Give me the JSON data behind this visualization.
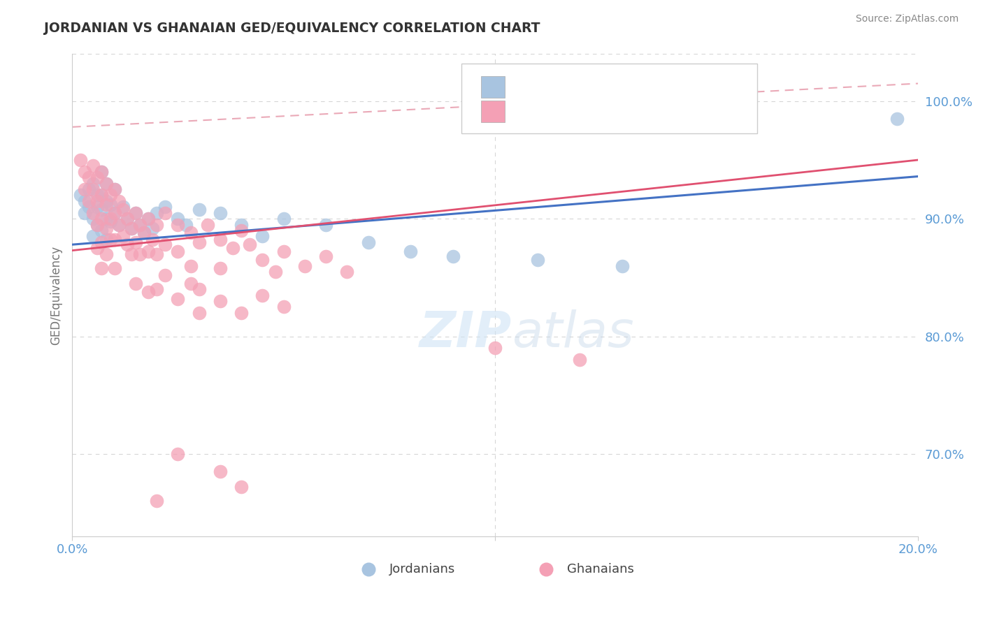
{
  "title": "JORDANIAN VS GHANAIAN GED/EQUIVALENCY CORRELATION CHART",
  "source": "Source: ZipAtlas.com",
  "ylabel": "GED/Equivalency",
  "xlim": [
    0.0,
    0.2
  ],
  "ylim": [
    0.63,
    1.04
  ],
  "yticks": [
    0.7,
    0.8,
    0.9,
    1.0
  ],
  "yticklabels": [
    "70.0%",
    "80.0%",
    "90.0%",
    "100.0%"
  ],
  "color_jordan": "#a8c4e0",
  "color_ghana": "#f4a0b5",
  "line_color_jordan": "#4472c4",
  "line_color_ghana": "#e05070",
  "dashed_line_color": "#e8a0b0",
  "background_color": "#ffffff",
  "grid_color": "#cccccc",
  "tick_color": "#5b9bd5",
  "title_color": "#333333",
  "jordan_trend": [
    0.878,
    0.936
  ],
  "ghana_trend": [
    0.873,
    0.95
  ],
  "dash_trend": [
    0.978,
    1.015
  ],
  "jordan_points": [
    [
      0.002,
      0.92
    ],
    [
      0.003,
      0.915
    ],
    [
      0.003,
      0.905
    ],
    [
      0.004,
      0.925
    ],
    [
      0.004,
      0.91
    ],
    [
      0.005,
      0.93
    ],
    [
      0.005,
      0.9
    ],
    [
      0.005,
      0.885
    ],
    [
      0.006,
      0.92
    ],
    [
      0.006,
      0.91
    ],
    [
      0.006,
      0.895
    ],
    [
      0.007,
      0.94
    ],
    [
      0.007,
      0.92
    ],
    [
      0.007,
      0.908
    ],
    [
      0.007,
      0.89
    ],
    [
      0.008,
      0.93
    ],
    [
      0.008,
      0.915
    ],
    [
      0.008,
      0.9
    ],
    [
      0.008,
      0.882
    ],
    [
      0.009,
      0.912
    ],
    [
      0.009,
      0.898
    ],
    [
      0.01,
      0.925
    ],
    [
      0.01,
      0.905
    ],
    [
      0.011,
      0.895
    ],
    [
      0.012,
      0.91
    ],
    [
      0.013,
      0.9
    ],
    [
      0.014,
      0.892
    ],
    [
      0.015,
      0.905
    ],
    [
      0.016,
      0.895
    ],
    [
      0.017,
      0.888
    ],
    [
      0.018,
      0.9
    ],
    [
      0.019,
      0.892
    ],
    [
      0.02,
      0.905
    ],
    [
      0.022,
      0.91
    ],
    [
      0.025,
      0.9
    ],
    [
      0.027,
      0.895
    ],
    [
      0.03,
      0.908
    ],
    [
      0.035,
      0.905
    ],
    [
      0.04,
      0.895
    ],
    [
      0.045,
      0.885
    ],
    [
      0.05,
      0.9
    ],
    [
      0.06,
      0.895
    ],
    [
      0.07,
      0.88
    ],
    [
      0.08,
      0.872
    ],
    [
      0.09,
      0.868
    ],
    [
      0.11,
      0.865
    ],
    [
      0.13,
      0.86
    ],
    [
      0.195,
      0.985
    ]
  ],
  "ghana_points": [
    [
      0.002,
      0.95
    ],
    [
      0.003,
      0.94
    ],
    [
      0.003,
      0.925
    ],
    [
      0.004,
      0.935
    ],
    [
      0.004,
      0.915
    ],
    [
      0.005,
      0.945
    ],
    [
      0.005,
      0.925
    ],
    [
      0.005,
      0.905
    ],
    [
      0.006,
      0.935
    ],
    [
      0.006,
      0.915
    ],
    [
      0.006,
      0.895
    ],
    [
      0.006,
      0.875
    ],
    [
      0.007,
      0.94
    ],
    [
      0.007,
      0.92
    ],
    [
      0.007,
      0.9
    ],
    [
      0.007,
      0.88
    ],
    [
      0.007,
      0.858
    ],
    [
      0.008,
      0.93
    ],
    [
      0.008,
      0.912
    ],
    [
      0.008,
      0.892
    ],
    [
      0.008,
      0.87
    ],
    [
      0.009,
      0.92
    ],
    [
      0.009,
      0.9
    ],
    [
      0.009,
      0.882
    ],
    [
      0.01,
      0.925
    ],
    [
      0.01,
      0.905
    ],
    [
      0.01,
      0.882
    ],
    [
      0.01,
      0.858
    ],
    [
      0.011,
      0.915
    ],
    [
      0.011,
      0.895
    ],
    [
      0.012,
      0.908
    ],
    [
      0.012,
      0.885
    ],
    [
      0.013,
      0.9
    ],
    [
      0.013,
      0.878
    ],
    [
      0.014,
      0.892
    ],
    [
      0.014,
      0.87
    ],
    [
      0.015,
      0.905
    ],
    [
      0.015,
      0.88
    ],
    [
      0.016,
      0.895
    ],
    [
      0.016,
      0.87
    ],
    [
      0.017,
      0.888
    ],
    [
      0.018,
      0.9
    ],
    [
      0.018,
      0.872
    ],
    [
      0.019,
      0.882
    ],
    [
      0.02,
      0.895
    ],
    [
      0.02,
      0.87
    ],
    [
      0.022,
      0.905
    ],
    [
      0.022,
      0.878
    ],
    [
      0.025,
      0.895
    ],
    [
      0.025,
      0.872
    ],
    [
      0.028,
      0.888
    ],
    [
      0.028,
      0.86
    ],
    [
      0.03,
      0.88
    ],
    [
      0.032,
      0.895
    ],
    [
      0.035,
      0.882
    ],
    [
      0.038,
      0.875
    ],
    [
      0.04,
      0.89
    ],
    [
      0.042,
      0.878
    ],
    [
      0.045,
      0.865
    ],
    [
      0.048,
      0.855
    ],
    [
      0.05,
      0.872
    ],
    [
      0.055,
      0.86
    ],
    [
      0.06,
      0.868
    ],
    [
      0.065,
      0.855
    ],
    [
      0.03,
      0.84
    ],
    [
      0.035,
      0.83
    ],
    [
      0.04,
      0.82
    ],
    [
      0.045,
      0.835
    ],
    [
      0.05,
      0.825
    ],
    [
      0.02,
      0.84
    ],
    [
      0.025,
      0.832
    ],
    [
      0.03,
      0.82
    ],
    [
      0.015,
      0.845
    ],
    [
      0.018,
      0.838
    ],
    [
      0.022,
      0.852
    ],
    [
      0.028,
      0.845
    ],
    [
      0.035,
      0.858
    ],
    [
      0.1,
      0.79
    ],
    [
      0.12,
      0.78
    ],
    [
      0.025,
      0.7
    ],
    [
      0.035,
      0.685
    ],
    [
      0.04,
      0.672
    ],
    [
      0.02,
      0.66
    ]
  ]
}
